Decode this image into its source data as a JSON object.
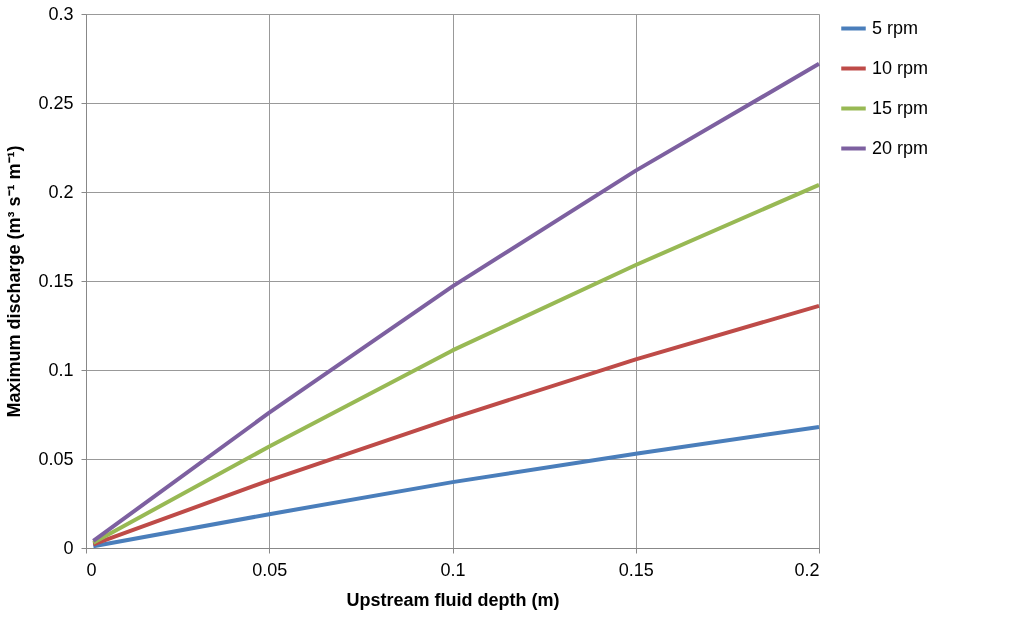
{
  "chart_data": {
    "type": "line",
    "xlabel": "Upstream fluid depth (m)",
    "ylabel": "Maximum discharge (m³ s⁻¹ m⁻¹)",
    "x": [
      0.002,
      0.05,
      0.1,
      0.15,
      0.2
    ],
    "series": [
      {
        "name": "5 rpm",
        "color": "#4a7ebb",
        "values": [
          0.001,
          0.019,
          0.037,
          0.053,
          0.068
        ]
      },
      {
        "name": "10 rpm",
        "color": "#be4b48",
        "values": [
          0.002,
          0.038,
          0.073,
          0.106,
          0.136
        ]
      },
      {
        "name": "15 rpm",
        "color": "#98b954",
        "values": [
          0.003,
          0.057,
          0.111,
          0.159,
          0.204
        ]
      },
      {
        "name": "20 rpm",
        "color": "#7d60a0",
        "values": [
          0.004,
          0.076,
          0.147,
          0.212,
          0.272
        ]
      }
    ],
    "xlim": [
      0,
      0.2
    ],
    "xticks": [
      0,
      0.05,
      0.1,
      0.15,
      0.2
    ],
    "ylim": [
      0,
      0.3
    ],
    "yticks": [
      0,
      0.05,
      0.1,
      0.15,
      0.2,
      0.25,
      0.3
    ],
    "grid": true,
    "legend": "right",
    "marker": "none",
    "line_style": "solid"
  }
}
